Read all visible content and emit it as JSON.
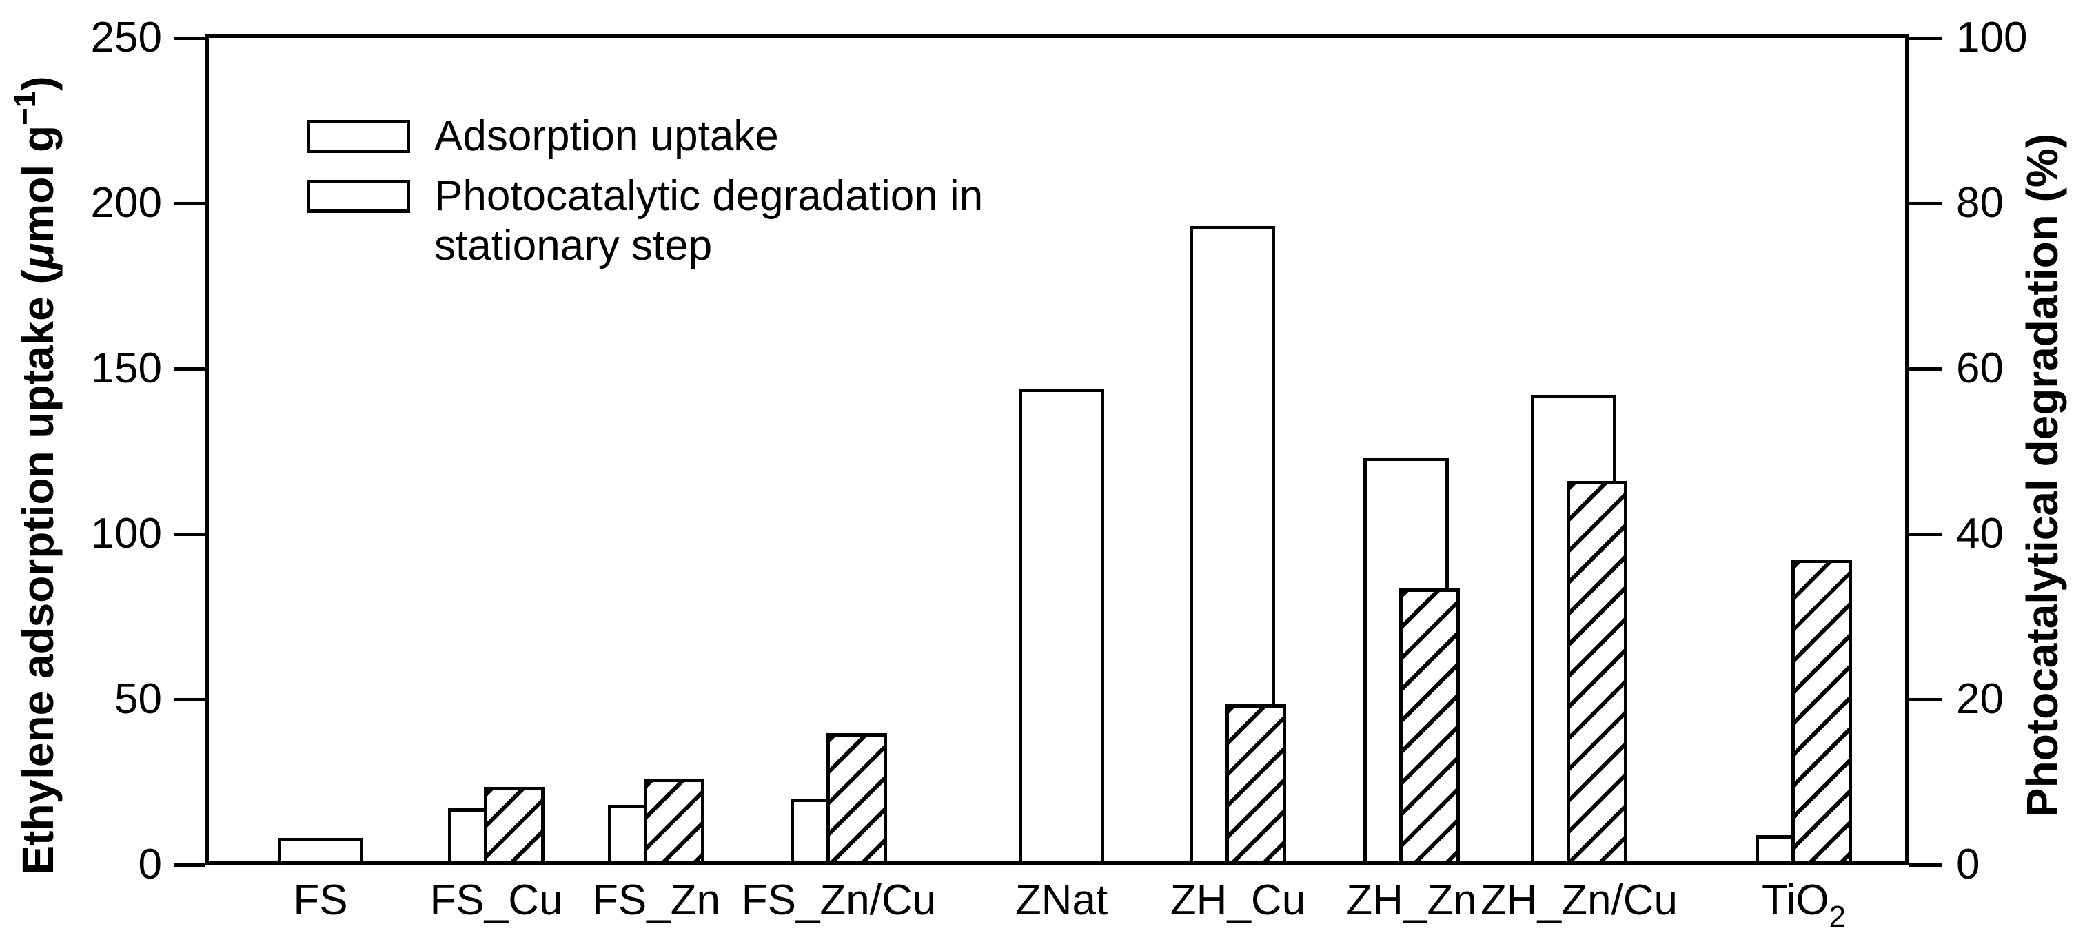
{
  "chart_data": {
    "type": "bar",
    "title": "",
    "categories": [
      "FS",
      "FS_Cu",
      "FS_Zn",
      "FS_Zn/Cu",
      "ZNat",
      "ZH_Cu",
      "ZH_Zn",
      "ZH_Zn/Cu",
      "TiO2"
    ],
    "category_display": [
      {
        "base": "FS",
        "sub": ""
      },
      {
        "base": "FS_Cu",
        "sub": ""
      },
      {
        "base": "FS_Zn",
        "sub": ""
      },
      {
        "base": "FS_Zn/Cu",
        "sub": ""
      },
      {
        "base": "ZNat",
        "sub": ""
      },
      {
        "base": "ZH_Cu",
        "sub": ""
      },
      {
        "base": "ZH_Zn",
        "sub": ""
      },
      {
        "base": "ZH_Zn/Cu",
        "sub": ""
      },
      {
        "base": "TiO",
        "sub": "2"
      }
    ],
    "series": [
      {
        "name": "Adsorption uptake",
        "axis": "left",
        "unit": "μmol g−1",
        "style": "open-bar",
        "values": [
          7,
          16,
          17,
          19,
          143,
          192,
          122,
          141,
          8
        ]
      },
      {
        "name": "Photocatalytic degradation in stationary step",
        "axis": "right",
        "unit": "%",
        "style": "hatched-bar",
        "values": [
          null,
          9,
          10,
          15.5,
          null,
          19,
          33,
          46,
          36.5
        ]
      }
    ],
    "left_axis": {
      "range": [
        0,
        250
      ],
      "tick_labels": [
        "0",
        "50",
        "100",
        "150",
        "200",
        "250"
      ]
    },
    "right_axis": {
      "range": [
        0,
        100
      ],
      "tick_labels": [
        "0",
        "20",
        "40",
        "60",
        "80",
        "100"
      ]
    },
    "grid": "off",
    "legend_position": "upper-left-inside"
  },
  "figure": {
    "left_axis_title": {
      "main": "Ethylene adsorption uptake (",
      "mu": "μ",
      "unit": "mol g",
      "sup": "−1",
      "close": ")"
    },
    "right_axis_title": "Photocatalytical degradation (%)",
    "legend": {
      "item1_label": "Adsorption uptake",
      "item2_line1": "Photocatalytic degradation in",
      "item2_line2": "stationary step"
    }
  }
}
